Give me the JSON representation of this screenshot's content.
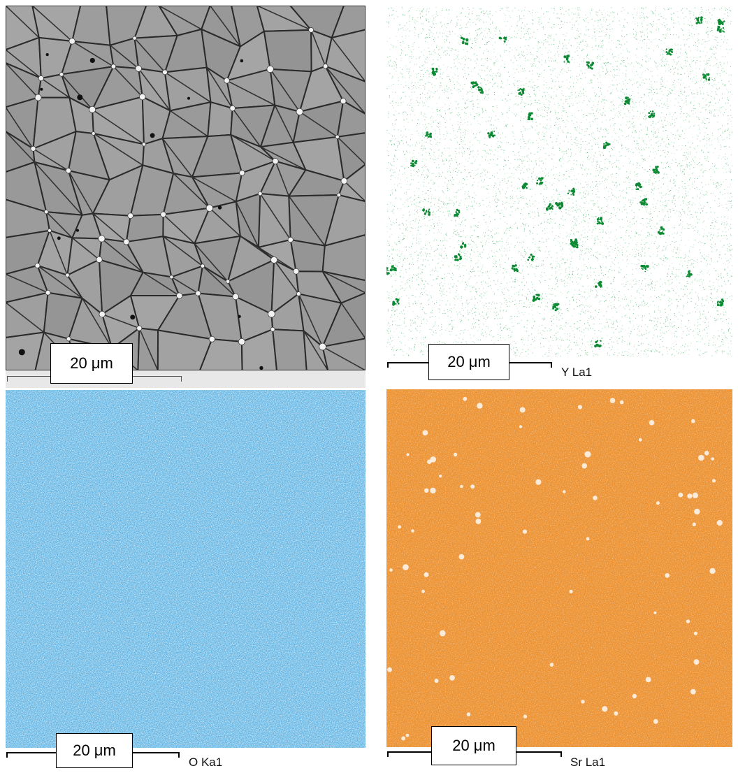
{
  "panels": {
    "sem": {
      "scale_label": "20 μm",
      "image": "grain-micrograph",
      "color": "#9b9b9b"
    },
    "yttrium": {
      "scale_label": "20 μm",
      "element_label": "Y La1",
      "color": "#0f9a3a"
    },
    "oxygen": {
      "scale_label": "20 μm",
      "element_label": "O Ka1",
      "color": "#3fa3dc"
    },
    "strontium": {
      "scale_label": "20 μm",
      "element_label": "Sr La1",
      "color": "#ec9232"
    }
  }
}
